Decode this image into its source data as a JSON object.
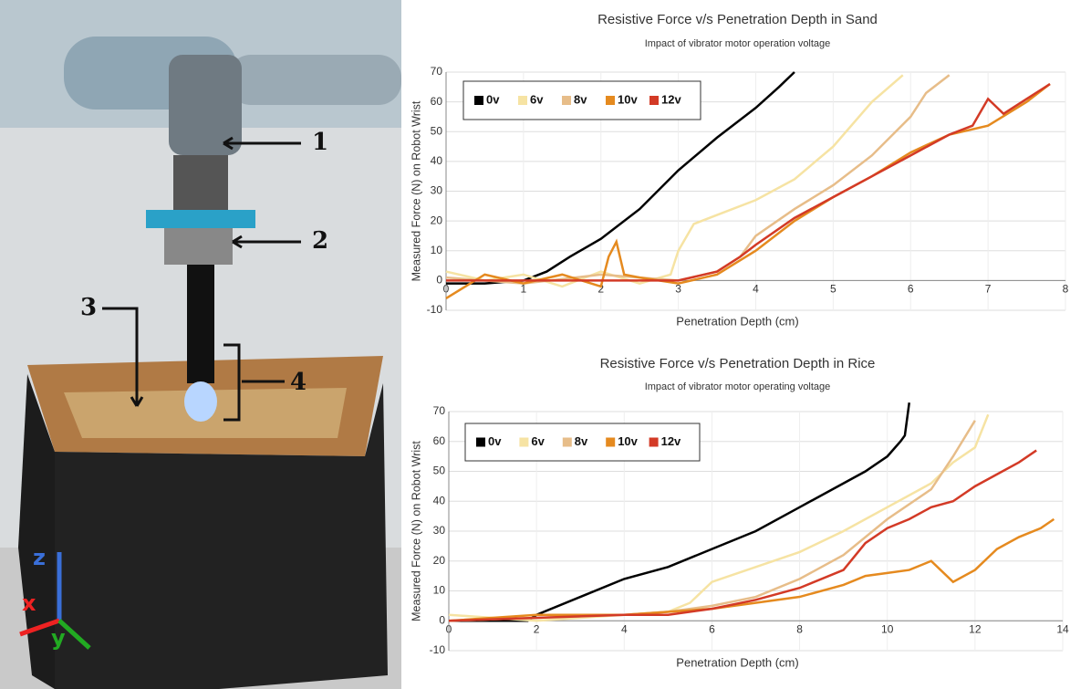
{
  "photo": {
    "labels": [
      "1",
      "2",
      "3",
      "4"
    ],
    "axes": [
      "x",
      "y",
      "z"
    ]
  },
  "chart_data": [
    {
      "type": "line",
      "title": "Resistive Force v/s Penetration Depth in Sand",
      "subtitle": "Impact of vibrator motor operation voltage",
      "x_label": "Penetration Depth (cm)",
      "y_label": "Measured Force (N) on Robot Wrist",
      "xlim": [
        0,
        8
      ],
      "xticks": [
        0,
        1,
        2,
        3,
        4,
        5,
        6,
        7,
        8
      ],
      "ylim": [
        -10,
        70
      ],
      "yticks": [
        -10,
        0,
        10,
        20,
        30,
        40,
        50,
        60,
        70
      ],
      "grid": true,
      "legend": "upper left",
      "series": [
        {
          "name": "0v",
          "color": "#000000",
          "x": [
            0,
            0.5,
            1,
            1.3,
            1.6,
            2,
            2.5,
            3,
            3.5,
            4,
            4.3,
            4.5
          ],
          "values": [
            -1,
            -1,
            0,
            3,
            8,
            14,
            24,
            37,
            48,
            58,
            65,
            70
          ]
        },
        {
          "name": "6v",
          "color": "#f6e3a3",
          "x": [
            0,
            0.5,
            1,
            1.5,
            2,
            2.5,
            2.9,
            3,
            3.2,
            3.5,
            4,
            4.5,
            5,
            5.5,
            5.9
          ],
          "values": [
            3,
            0,
            2,
            -2,
            3,
            -1,
            2,
            10,
            19,
            22,
            27,
            34,
            45,
            60,
            69
          ]
        },
        {
          "name": "8v",
          "color": "#e7bd89",
          "x": [
            0,
            1,
            2,
            3,
            3.5,
            3.8,
            4,
            4.5,
            5,
            5.5,
            6,
            6.2,
            6.5
          ],
          "values": [
            1,
            -1,
            2,
            0,
            3,
            8,
            15,
            24,
            32,
            42,
            55,
            63,
            69
          ]
        },
        {
          "name": "10v",
          "color": "#e58a1f",
          "x": [
            0,
            0.5,
            1,
            1.5,
            2,
            2.1,
            2.2,
            2.3,
            2.5,
            3,
            3.5,
            4,
            4.5,
            5,
            5.5,
            6,
            6.5,
            7,
            7.5,
            7.8
          ],
          "values": [
            -6,
            2,
            -1,
            2,
            -2,
            8,
            13,
            2,
            1,
            -1,
            2,
            10,
            20,
            28,
            35,
            43,
            49,
            52,
            60,
            66
          ]
        },
        {
          "name": "12v",
          "color": "#d33a26",
          "x": [
            0,
            3,
            3.5,
            3.8,
            4,
            4.5,
            5,
            5.5,
            6,
            6.5,
            6.8,
            7,
            7.2,
            7.5,
            7.8
          ],
          "values": [
            0,
            0,
            3,
            8,
            12,
            21,
            28,
            35,
            42,
            49,
            52,
            61,
            56,
            61,
            66
          ]
        }
      ]
    },
    {
      "type": "line",
      "title": "Resistive Force v/s Penetration Depth in Rice",
      "subtitle": "Impact of vibrator motor operating voltage",
      "x_label": "Penetration Depth (cm)",
      "y_label": "Measured Force (N) on Robot Wrist",
      "xlim": [
        0,
        14
      ],
      "xticks": [
        0,
        2,
        4,
        6,
        8,
        10,
        12,
        14
      ],
      "ylim": [
        -10,
        70
      ],
      "yticks": [
        -10,
        0,
        10,
        20,
        30,
        40,
        50,
        60,
        70
      ],
      "grid": true,
      "legend": "upper left",
      "series": [
        {
          "name": "0v",
          "color": "#000000",
          "x": [
            0,
            1,
            1.8,
            2,
            3,
            4,
            5,
            6,
            7,
            8,
            9,
            9.5,
            10,
            10.3,
            10.4,
            10.5
          ],
          "values": [
            0,
            0,
            0,
            2,
            8,
            14,
            18,
            24,
            30,
            38,
            46,
            50,
            55,
            60,
            62,
            73
          ]
        },
        {
          "name": "6v",
          "color": "#f6e3a3",
          "x": [
            0,
            1,
            2,
            3,
            4,
            5,
            5.5,
            6,
            7,
            8,
            9,
            10,
            11,
            11.5,
            12,
            12.3
          ],
          "values": [
            2,
            1,
            0,
            1,
            2,
            3,
            6,
            13,
            18,
            23,
            30,
            38,
            46,
            53,
            58,
            69
          ]
        },
        {
          "name": "8v",
          "color": "#e7bd89",
          "x": [
            0,
            2,
            4,
            5,
            6,
            7,
            8,
            9,
            10,
            11,
            11.5,
            12
          ],
          "values": [
            0,
            1,
            2,
            3,
            5,
            8,
            14,
            22,
            34,
            44,
            55,
            67
          ]
        },
        {
          "name": "10v",
          "color": "#e58a1f",
          "x": [
            0,
            2,
            4,
            6,
            8,
            9,
            9.5,
            10,
            10.5,
            11,
            11.5,
            12,
            12.5,
            13,
            13.5,
            13.8
          ],
          "values": [
            0,
            2,
            2,
            4,
            8,
            12,
            15,
            16,
            17,
            20,
            13,
            17,
            24,
            28,
            31,
            34
          ]
        },
        {
          "name": "12v",
          "color": "#d33a26",
          "x": [
            0,
            2,
            4,
            5,
            6,
            7,
            8,
            9,
            9.5,
            10,
            10.5,
            11,
            11.5,
            12,
            12.5,
            13,
            13.4
          ],
          "values": [
            0,
            1,
            2,
            2,
            4,
            7,
            11,
            17,
            26,
            31,
            34,
            38,
            40,
            45,
            49,
            53,
            57
          ]
        }
      ]
    }
  ]
}
